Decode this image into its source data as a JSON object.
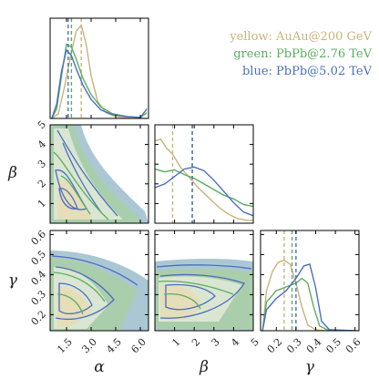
{
  "chart_data": {
    "type": "corner-plot",
    "parameters": [
      {
        "name": "alpha",
        "label": "α",
        "range": [
          0.5,
          6.5
        ],
        "ticks": [
          "1.5",
          "3.0",
          "4.5",
          "6.0"
        ],
        "tick_values": [
          1.5,
          3.0,
          4.5,
          6.0
        ]
      },
      {
        "name": "beta",
        "label": "β",
        "range": [
          0,
          5
        ],
        "ticks": [
          "1",
          "2",
          "3",
          "4",
          "5"
        ],
        "tick_values": [
          1,
          2,
          3,
          4,
          5
        ]
      },
      {
        "name": "gamma",
        "label": "γ",
        "range": [
          0.12,
          0.62
        ],
        "ticks": [
          "0.2",
          "0.3",
          "0.4",
          "0.5",
          "0.6"
        ],
        "tick_values": [
          0.2,
          0.3,
          0.4,
          0.5,
          0.6
        ]
      }
    ],
    "beta_left_ticks": [
      "1",
      "2",
      "3",
      "4",
      "5"
    ],
    "gamma_left_ticks": [
      "0.2",
      "0.3",
      "0.4",
      "0.5",
      "0.6"
    ],
    "series": [
      {
        "name": "AuAu@200 GeV",
        "legend": "yellow: AuAu@200 GeV",
        "color": "#c9b37a",
        "alpha_median": 2.4,
        "beta_median": 0.9,
        "gamma_median": 0.24,
        "alpha_hist": [
          [
            0.6,
            0
          ],
          [
            1.0,
            0.05
          ],
          [
            1.4,
            0.35
          ],
          [
            1.8,
            0.7
          ],
          [
            2.1,
            0.92
          ],
          [
            2.4,
            0.98
          ],
          [
            2.7,
            0.78
          ],
          [
            3.0,
            0.45
          ],
          [
            3.4,
            0.18
          ],
          [
            3.9,
            0.06
          ],
          [
            4.5,
            0.02
          ],
          [
            5.5,
            0.0
          ],
          [
            6.4,
            0.0
          ]
        ],
        "beta_hist": [
          [
            0.0,
            0.88
          ],
          [
            0.3,
            0.9
          ],
          [
            0.6,
            0.8
          ],
          [
            0.9,
            0.74
          ],
          [
            1.3,
            0.6
          ],
          [
            1.7,
            0.5
          ],
          [
            2.2,
            0.38
          ],
          [
            2.7,
            0.28
          ],
          [
            3.2,
            0.18
          ],
          [
            3.7,
            0.1
          ],
          [
            4.2,
            0.05
          ],
          [
            4.7,
            0.03
          ],
          [
            5.0,
            0.03
          ]
        ],
        "gamma_hist": [
          [
            0.13,
            0.0
          ],
          [
            0.15,
            0.42
          ],
          [
            0.18,
            0.62
          ],
          [
            0.21,
            0.72
          ],
          [
            0.24,
            0.74
          ],
          [
            0.27,
            0.7
          ],
          [
            0.3,
            0.5
          ],
          [
            0.33,
            0.25
          ],
          [
            0.36,
            0.06
          ],
          [
            0.4,
            0.01
          ],
          [
            0.45,
            0.0
          ],
          [
            0.62,
            0.0
          ]
        ]
      },
      {
        "name": "PbPb@2.76 TeV",
        "legend": "green: PbPb@2.76 TeV",
        "color": "#5aae61",
        "alpha_median": 1.8,
        "beta_median": 1.9,
        "gamma_median": 0.28,
        "alpha_hist": [
          [
            0.6,
            0
          ],
          [
            0.9,
            0.1
          ],
          [
            1.2,
            0.45
          ],
          [
            1.5,
            0.78
          ],
          [
            1.8,
            0.75
          ],
          [
            2.1,
            0.62
          ],
          [
            2.5,
            0.42
          ],
          [
            3.0,
            0.25
          ],
          [
            3.6,
            0.12
          ],
          [
            4.3,
            0.05
          ],
          [
            5.2,
            0.02
          ],
          [
            6.0,
            0.01
          ],
          [
            6.4,
            0.06
          ]
        ],
        "beta_hist": [
          [
            0.0,
            0.58
          ],
          [
            0.5,
            0.55
          ],
          [
            1.0,
            0.57
          ],
          [
            1.5,
            0.52
          ],
          [
            2.0,
            0.48
          ],
          [
            2.5,
            0.42
          ],
          [
            3.0,
            0.36
          ],
          [
            3.5,
            0.3
          ],
          [
            4.0,
            0.26
          ],
          [
            4.5,
            0.2
          ],
          [
            5.0,
            0.18
          ]
        ],
        "gamma_hist": [
          [
            0.13,
            0.0
          ],
          [
            0.15,
            0.3
          ],
          [
            0.2,
            0.42
          ],
          [
            0.25,
            0.46
          ],
          [
            0.3,
            0.5
          ],
          [
            0.33,
            0.55
          ],
          [
            0.36,
            0.5
          ],
          [
            0.39,
            0.25
          ],
          [
            0.42,
            0.05
          ],
          [
            0.46,
            0.01
          ],
          [
            0.6,
            0.0
          ]
        ]
      },
      {
        "name": "PbPb@5.02 TeV",
        "legend": "blue: PbPb@5.02 TeV",
        "color": "#4a6fbf",
        "alpha_median": 1.6,
        "beta_median": 1.9,
        "gamma_median": 0.3,
        "alpha_hist": [
          [
            0.6,
            0
          ],
          [
            0.9,
            0.15
          ],
          [
            1.2,
            0.5
          ],
          [
            1.5,
            0.72
          ],
          [
            1.8,
            0.66
          ],
          [
            2.1,
            0.52
          ],
          [
            2.5,
            0.35
          ],
          [
            3.0,
            0.2
          ],
          [
            3.6,
            0.09
          ],
          [
            4.3,
            0.04
          ],
          [
            5.2,
            0.02
          ],
          [
            6.0,
            0.01
          ],
          [
            6.4,
            0.1
          ]
        ],
        "beta_hist": [
          [
            0.0,
            0.38
          ],
          [
            0.5,
            0.42
          ],
          [
            1.0,
            0.5
          ],
          [
            1.5,
            0.58
          ],
          [
            2.0,
            0.6
          ],
          [
            2.5,
            0.56
          ],
          [
            3.0,
            0.46
          ],
          [
            3.5,
            0.34
          ],
          [
            4.0,
            0.22
          ],
          [
            4.5,
            0.12
          ],
          [
            5.0,
            0.08
          ]
        ],
        "gamma_hist": [
          [
            0.13,
            0.0
          ],
          [
            0.15,
            0.22
          ],
          [
            0.2,
            0.34
          ],
          [
            0.25,
            0.42
          ],
          [
            0.3,
            0.55
          ],
          [
            0.34,
            0.68
          ],
          [
            0.37,
            0.7
          ],
          [
            0.4,
            0.45
          ],
          [
            0.43,
            0.1
          ],
          [
            0.47,
            0.01
          ],
          [
            0.6,
            0.0
          ]
        ]
      }
    ]
  }
}
